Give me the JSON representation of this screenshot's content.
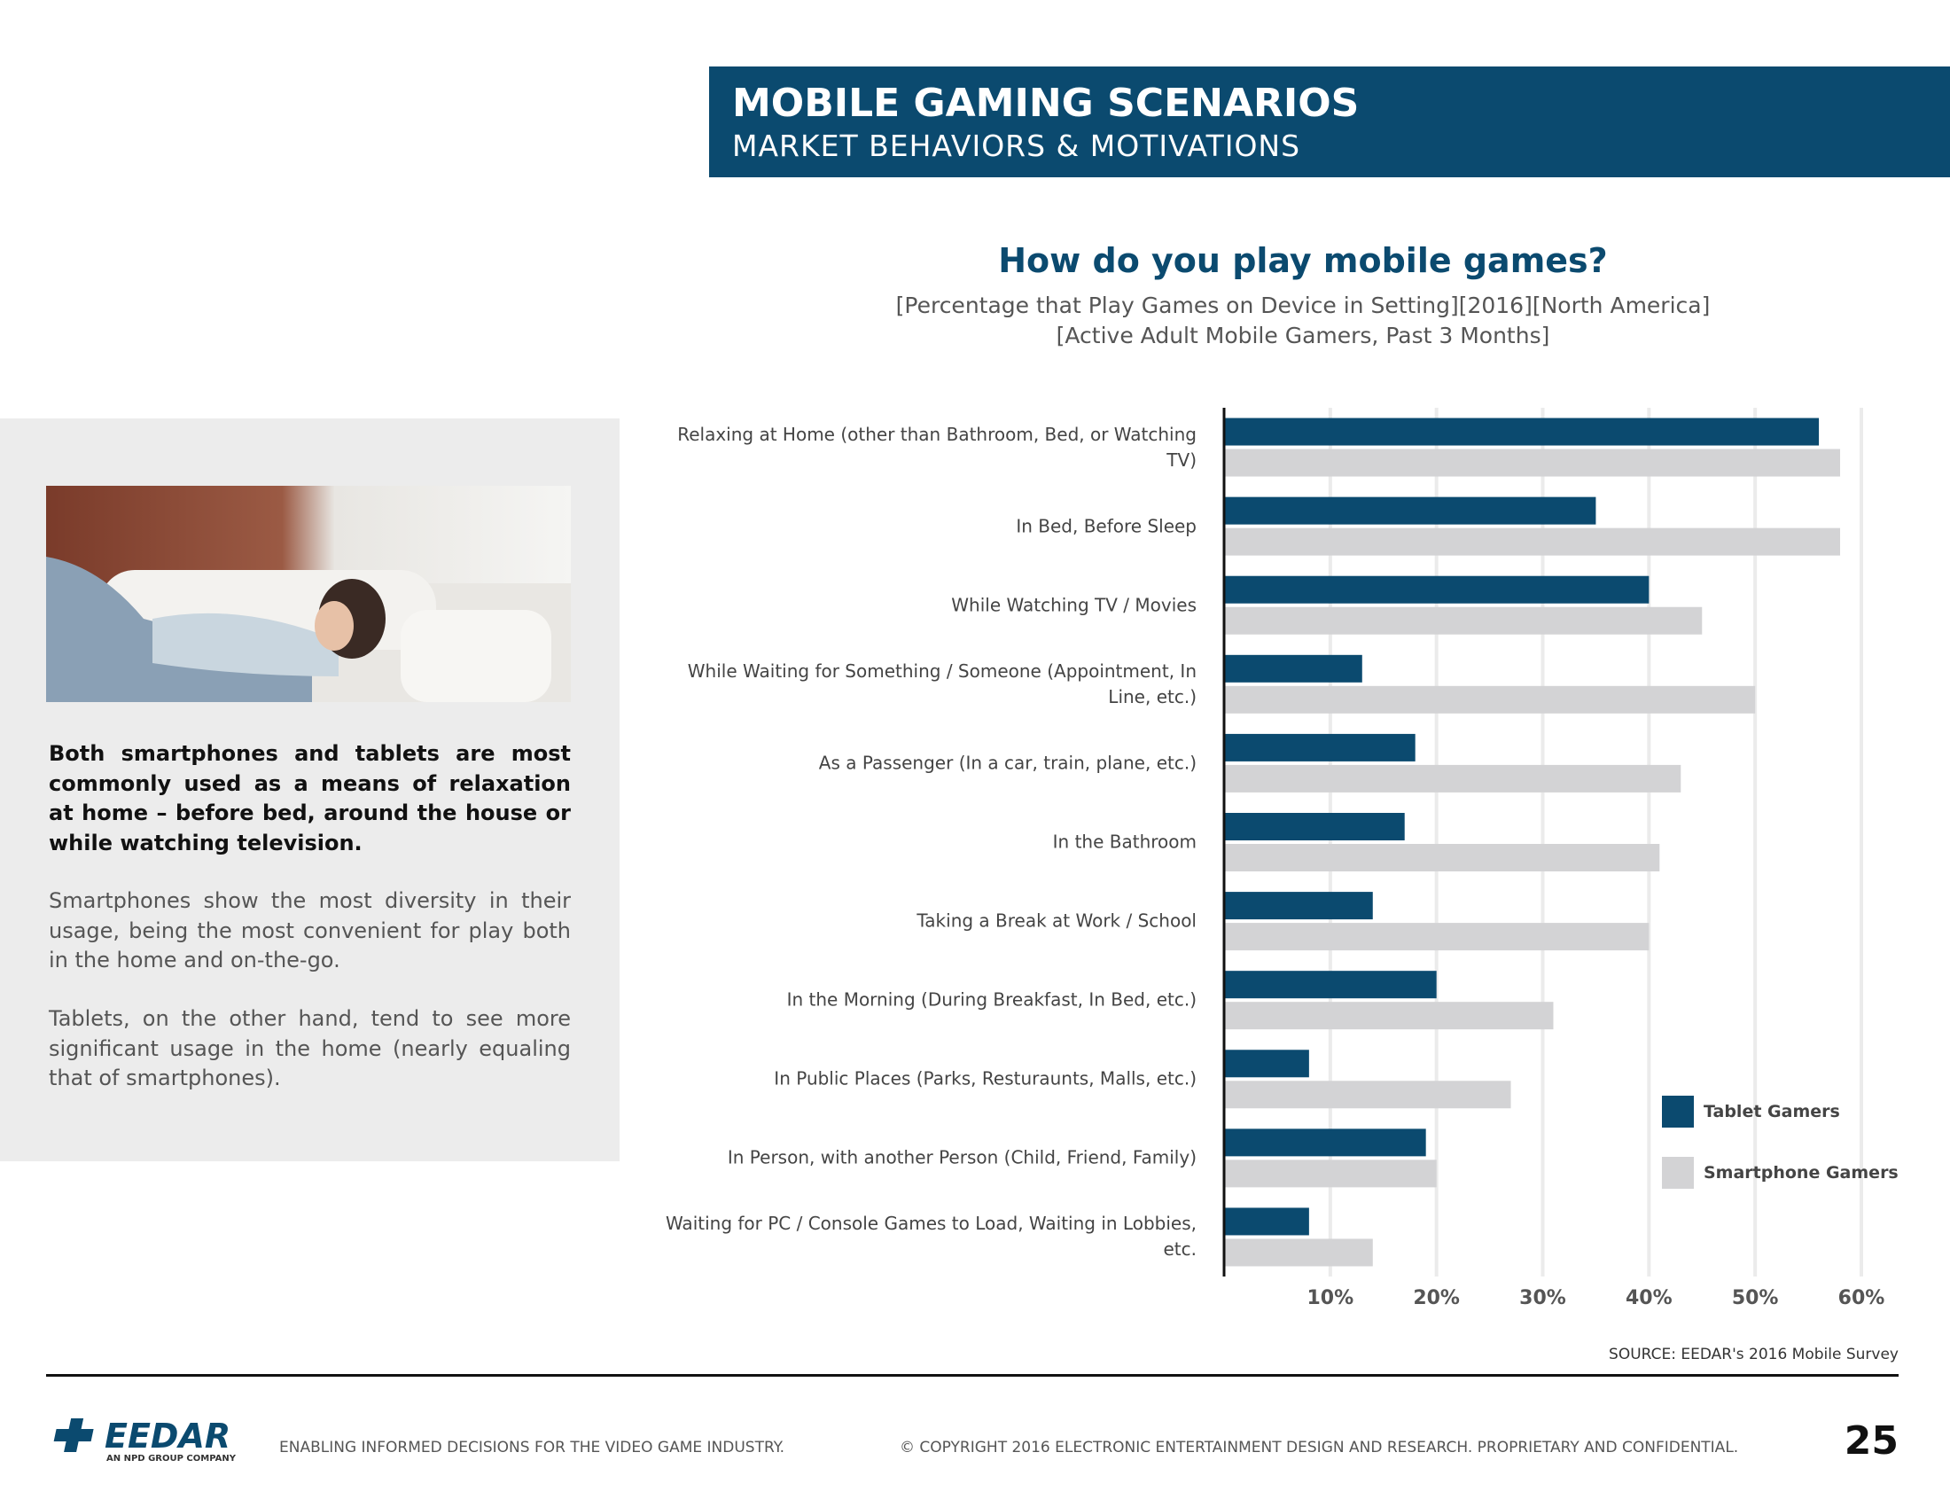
{
  "header": {
    "title": "MOBILE GAMING SCENARIOS",
    "subtitle": "MARKET BEHAVIORS & MOTIVATIONS"
  },
  "sidebar": {
    "lead": "Both smartphones and tablets are most commonly used as a means of relaxation at home – before bed, around the house or while watching television.",
    "paragraphs": [
      "Smartphones show the most diversity in their usage, being the most convenient for play both in the home and on-the-go.",
      "Tablets, on the other hand, tend to see more significant usage in the home (nearly equaling that of smartphones)."
    ]
  },
  "chart_data": {
    "type": "hbar",
    "title": "How do you play mobile games?",
    "subtitle": [
      "[Percentage that Play Games on Device in Setting][2016][North America]",
      "[Active Adult Mobile Gamers, Past 3 Months]"
    ],
    "categories": [
      "Relaxing at Home (other than Bathroom, Bed, or Watching TV)",
      "In Bed, Before Sleep",
      "While Watching TV / Movies",
      "While Waiting for Something / Someone (Appointment, In Line, etc.)",
      "As a Passenger (In a car, train, plane, etc.)",
      "In the Bathroom",
      "Taking a Break at Work / School",
      "In the Morning (During Breakfast, In Bed, etc.)",
      "In Public Places (Parks, Resturaunts, Malls, etc.)",
      "In Person, with another Person (Child, Friend, Family)",
      "Waiting for PC / Console Games to Load, Waiting in Lobbies, etc."
    ],
    "series": [
      {
        "name": "Tablet Gamers",
        "color": "#0b4a6f",
        "values": [
          56,
          35,
          40,
          13,
          18,
          17,
          14,
          20,
          8,
          19,
          8
        ]
      },
      {
        "name": "Smartphone Gamers",
        "color": "#d3d3d5",
        "values": [
          58,
          58,
          45,
          50,
          43,
          41,
          40,
          31,
          27,
          20,
          14
        ]
      }
    ],
    "xlim": [
      0,
      60
    ],
    "xticks": [
      {
        "value": 10,
        "label": "10%"
      },
      {
        "value": 20,
        "label": "20%"
      },
      {
        "value": 30,
        "label": "30%"
      },
      {
        "value": 40,
        "label": "40%"
      },
      {
        "value": 50,
        "label": "50%"
      },
      {
        "value": 60,
        "label": "60%"
      }
    ],
    "grid": true,
    "legend": "lower right"
  },
  "source": "SOURCE: EEDAR's 2016 Mobile Survey",
  "footer": {
    "logo": "EEDAR",
    "logo_sub": "AN NPD GROUP COMPANY",
    "tagline": "ENABLING INFORMED DECISIONS FOR THE  VIDEO GAME INDUSTRY.",
    "copyright": "© COPYRIGHT 2016 ELECTRONIC ENTERTAINMENT DESIGN AND RESEARCH. PROPRIETARY AND CONFIDENTIAL.",
    "page": 25
  }
}
